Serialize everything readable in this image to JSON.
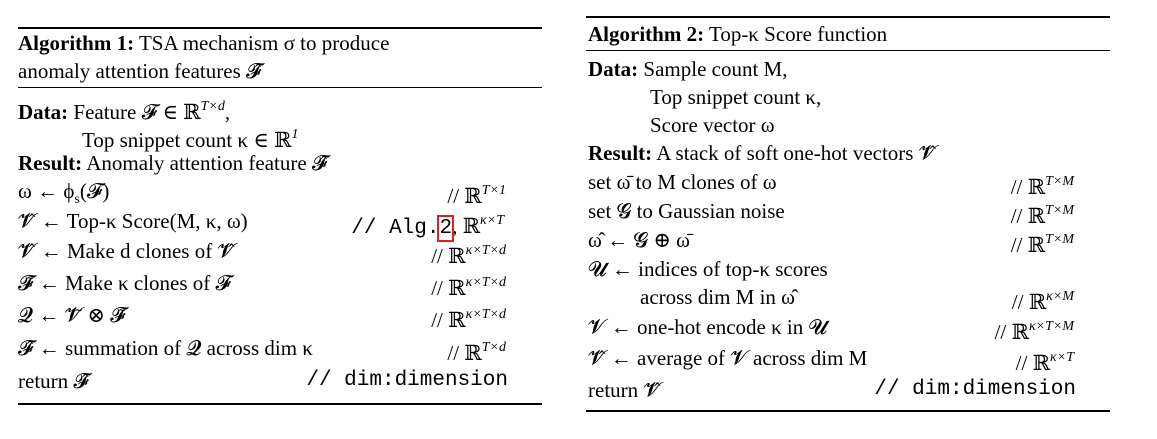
{
  "algo1": {
    "header_label": "Algorithm 1:",
    "header_title_l1": "TSA mechanism σ to produce",
    "header_title_l2": "anomaly attention features 𝓕̂",
    "data_label": "Data:",
    "data_l1": "Feature 𝓕 ∈ ℝ",
    "data_l1_sup": "T×d",
    "data_l1_tail": ",",
    "data_l2": "Top snippet count κ ∈ ℝ",
    "data_l2_sup": "1",
    "result_label": "Result:",
    "result_text": "Anomaly attention feature 𝓕̂",
    "steps": [
      {
        "lhs": "ω ← ϕ",
        "lhs_sub": "s",
        "lhs_tail": "(𝓕)",
        "cmt": "// ℝ",
        "cmt_sup": "T×1"
      },
      {
        "lhs": "𝓥̂ ← Top-κ Score(M, κ, ω)",
        "cmt": "// Alg.",
        "ref": "2",
        "cmt_tail": ", ℝ",
        "cmt_sup": "κ×T"
      },
      {
        "lhs": "𝓥̂ ← Make d clones of 𝓥̂",
        "cmt": "// ℝ",
        "cmt_sup": "κ×T×d"
      },
      {
        "lhs": "𝓕̃ ← Make κ clones of 𝓕",
        "cmt": "// ℝ",
        "cmt_sup": "κ×T×d"
      },
      {
        "lhs": "𝓠 ← 𝓥̃ ⊗ 𝓕̃",
        "cmt": "// ℝ",
        "cmt_sup": "κ×T×d"
      },
      {
        "lhs": "𝓕̂ ← summation of 𝓠 across dim κ",
        "cmt": "// ℝ",
        "cmt_sup": "T×d"
      }
    ],
    "return_text": "return 𝓕̂",
    "return_cmt": "// dim:dimension"
  },
  "algo2": {
    "header_label": "Algorithm 2:",
    "header_title": "Top-κ Score function",
    "data_label": "Data:",
    "data_l1": "Sample count M,",
    "data_l2": "Top snippet count κ,",
    "data_l3": "Score vector ω",
    "result_label": "Result:",
    "result_text": "A stack of soft one-hot vectors 𝓥̂",
    "steps": [
      {
        "lhs": "set ω̄ to M clones of ω",
        "cmt": "// ℝ",
        "cmt_sup": "T×M"
      },
      {
        "lhs": "set 𝓖 to Gaussian noise",
        "cmt": "// ℝ",
        "cmt_sup": "T×M"
      },
      {
        "lhs": "ω̂ ← 𝓖 ⊕ ω̄",
        "cmt": "// ℝ",
        "cmt_sup": "T×M"
      },
      {
        "lhs": "𝓤 ← indices of top-κ scores",
        "cmt": "",
        "cmt_sup": ""
      },
      {
        "lhs": "across dim M in ω̂",
        "cmt": "// ℝ",
        "cmt_sup": "κ×M"
      },
      {
        "lhs": "𝓥 ← one-hot encode κ in 𝓤",
        "cmt": "// ℝ",
        "cmt_sup": "κ×T×M"
      },
      {
        "lhs": "𝓥̂ ← average of 𝓥 across dim M",
        "cmt": "// ℝ",
        "cmt_sup": "κ×T"
      }
    ],
    "return_text": "return 𝓥̂",
    "return_cmt": "// dim:dimension"
  }
}
